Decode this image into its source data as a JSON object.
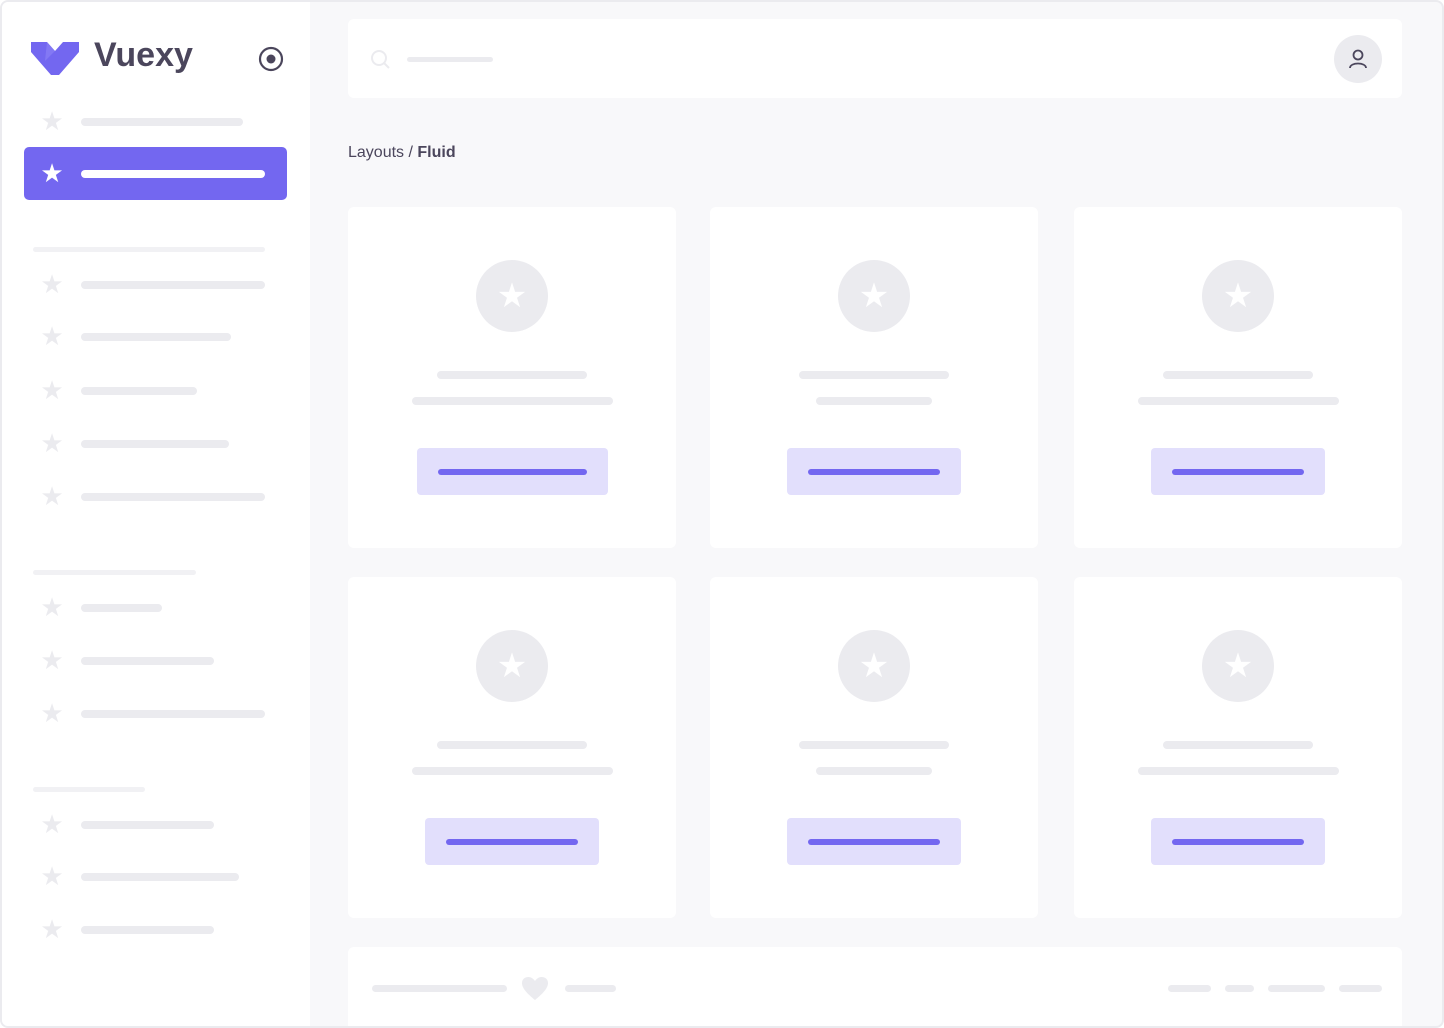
{
  "brand": {
    "name": "Vuexy",
    "color": "#7367f0",
    "logo_icon": "vuexy-logo-icon",
    "toggle_icon": "radio-circle-icon"
  },
  "breadcrumb": {
    "parent": "Layouts /",
    "current": "Fluid"
  },
  "header": {
    "search_icon": "search-icon",
    "avatar_icon": "user-icon"
  },
  "sidebar": {
    "active_index": 1,
    "item_icon": "star-icon"
  },
  "footer": {
    "icon": "heart-icon"
  }
}
